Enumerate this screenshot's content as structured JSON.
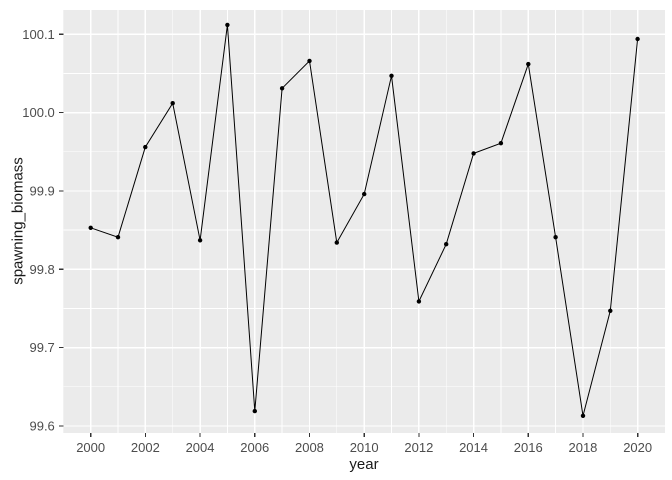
{
  "chart_data": {
    "type": "line",
    "marker": "point",
    "x": [
      2000,
      2001,
      2002,
      2003,
      2004,
      2005,
      2006,
      2007,
      2008,
      2009,
      2010,
      2011,
      2012,
      2013,
      2014,
      2015,
      2016,
      2017,
      2018,
      2019,
      2020
    ],
    "y": [
      99.853,
      99.841,
      99.956,
      100.012,
      99.837,
      100.112,
      99.619,
      100.031,
      100.066,
      99.834,
      99.896,
      100.047,
      99.759,
      99.832,
      99.948,
      99.961,
      100.062,
      99.841,
      99.613,
      99.747,
      100.094
    ],
    "xlabel": "year",
    "ylabel": "spawning_biomass",
    "x_ticks": [
      2000,
      2002,
      2004,
      2006,
      2008,
      2010,
      2012,
      2014,
      2016,
      2018,
      2020
    ],
    "x_tick_labels": [
      "2000",
      "2002",
      "2004",
      "2006",
      "2008",
      "2010",
      "2012",
      "2014",
      "2016",
      "2018",
      "2020"
    ],
    "y_ticks": [
      99.6,
      99.7,
      99.8,
      99.9,
      100.0,
      100.1
    ],
    "y_tick_labels": [
      "99.6",
      "99.7",
      "99.8",
      "99.9",
      "100.0",
      "100.1"
    ],
    "xlim": [
      1999,
      2021
    ],
    "ylim": [
      99.591,
      100.131
    ],
    "grid": "major+minor",
    "legend": "none",
    "theme": {
      "background": "#FFFFFF",
      "panel_bg": "#EBEBEB",
      "grid_color": "#FFFFFF",
      "line_color": "#000000",
      "point_color": "#000000",
      "tick_label_color": "#4D4D4D",
      "axis_title_color": "#1A1A1A",
      "tick_mark_color": "#333333"
    }
  }
}
